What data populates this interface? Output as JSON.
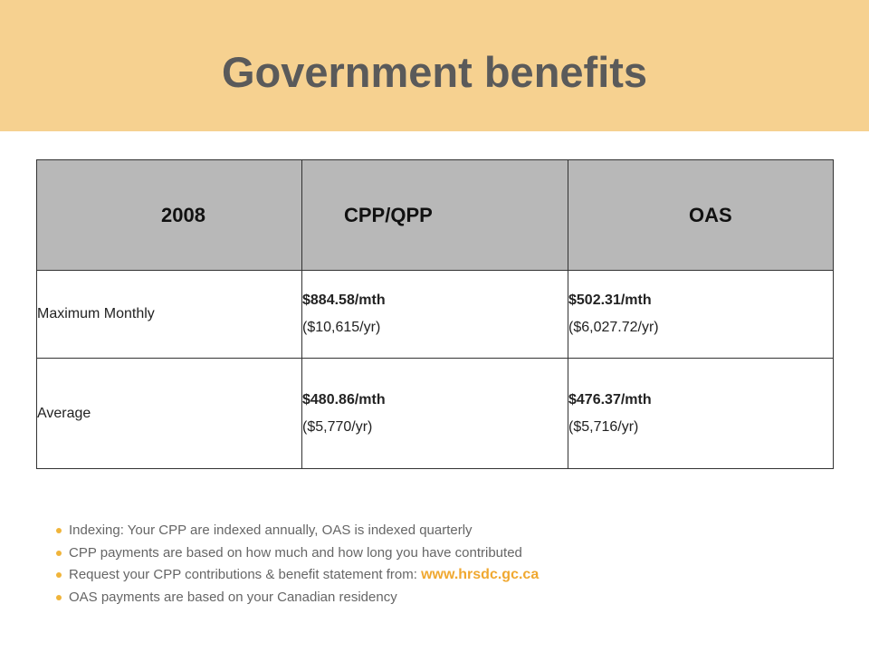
{
  "slide": {
    "title": "Government benefits"
  },
  "table": {
    "headers": [
      "2008",
      "CPP/QPP",
      "OAS"
    ],
    "rows": [
      {
        "label": "Maximum Monthly",
        "cpp": {
          "monthly": "$884.58/mth",
          "yearly": "($10,615/yr)"
        },
        "oas": {
          "monthly": "$502.31/mth",
          "yearly": "($6,027.72/yr)"
        }
      },
      {
        "label": "Average",
        "cpp": {
          "monthly": "$480.86/mth",
          "yearly": "($5,770/yr)"
        },
        "oas": {
          "monthly": "$476.37/mth",
          "yearly": "($5,716/yr)"
        }
      }
    ]
  },
  "bullets": [
    {
      "text": "Indexing: Your CPP are indexed annually, OAS is indexed quarterly"
    },
    {
      "text": "CPP payments are based on how much and how long you have contributed"
    },
    {
      "text": "Request your CPP contributions & benefit statement from: ",
      "link": "www.hrsdc.gc.ca"
    },
    {
      "text": "OAS payments are based on your Canadian residency"
    }
  ],
  "colors": {
    "header_band": "#f6d190",
    "table_header": "#b8b8b8",
    "bullet": "#f0b43a",
    "link": "#f0a830",
    "title_text": "#5a5a5a"
  }
}
